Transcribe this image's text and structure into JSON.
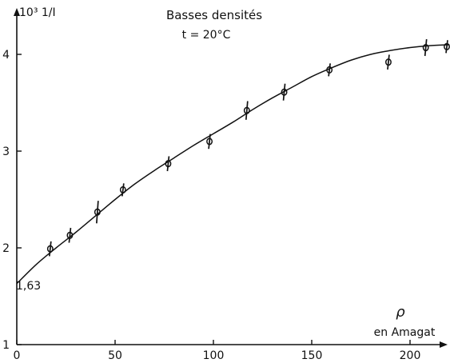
{
  "chart_data": {
    "type": "scatter",
    "title": "Basses densités",
    "subtitle": "t = 20°C",
    "ylabel": "10³ 1/I",
    "xlabel_symbol": "ρ",
    "xlabel": "en Amagat",
    "xlim": [
      0,
      220
    ],
    "ylim": [
      1,
      4.3
    ],
    "xticks": [
      0,
      50,
      100,
      150,
      200
    ],
    "yticks": [
      1,
      2,
      3,
      4
    ],
    "grid": false,
    "intercept_label": "1,63",
    "intercept_value": 1.63,
    "points": [
      {
        "x": 17,
        "y": 1.99,
        "err": 0.06
      },
      {
        "x": 27,
        "y": 2.13,
        "err": 0.06
      },
      {
        "x": 41,
        "y": 2.37,
        "err": 0.1
      },
      {
        "x": 54,
        "y": 2.6,
        "err": 0.05
      },
      {
        "x": 77,
        "y": 2.87,
        "err": 0.06
      },
      {
        "x": 98,
        "y": 3.1,
        "err": 0.06
      },
      {
        "x": 117,
        "y": 3.42,
        "err": 0.08
      },
      {
        "x": 136,
        "y": 3.61,
        "err": 0.07
      },
      {
        "x": 159,
        "y": 3.84,
        "err": 0.05
      },
      {
        "x": 189,
        "y": 3.92,
        "err": 0.06
      },
      {
        "x": 208,
        "y": 4.07,
        "err": 0.07
      },
      {
        "x": 220,
        "y": 4.08,
        "err": 0.05
      }
    ],
    "fit_curve": [
      [
        0,
        1.63
      ],
      [
        10,
        1.83
      ],
      [
        20,
        2.0
      ],
      [
        30,
        2.16
      ],
      [
        40,
        2.33
      ],
      [
        50,
        2.5
      ],
      [
        60,
        2.66
      ],
      [
        70,
        2.8
      ],
      [
        80,
        2.93
      ],
      [
        90,
        3.06
      ],
      [
        100,
        3.18
      ],
      [
        110,
        3.3
      ],
      [
        120,
        3.43
      ],
      [
        130,
        3.55
      ],
      [
        140,
        3.66
      ],
      [
        150,
        3.77
      ],
      [
        160,
        3.86
      ],
      [
        170,
        3.94
      ],
      [
        180,
        4.0
      ],
      [
        190,
        4.04
      ],
      [
        200,
        4.07
      ],
      [
        210,
        4.09
      ],
      [
        220,
        4.1
      ]
    ]
  }
}
